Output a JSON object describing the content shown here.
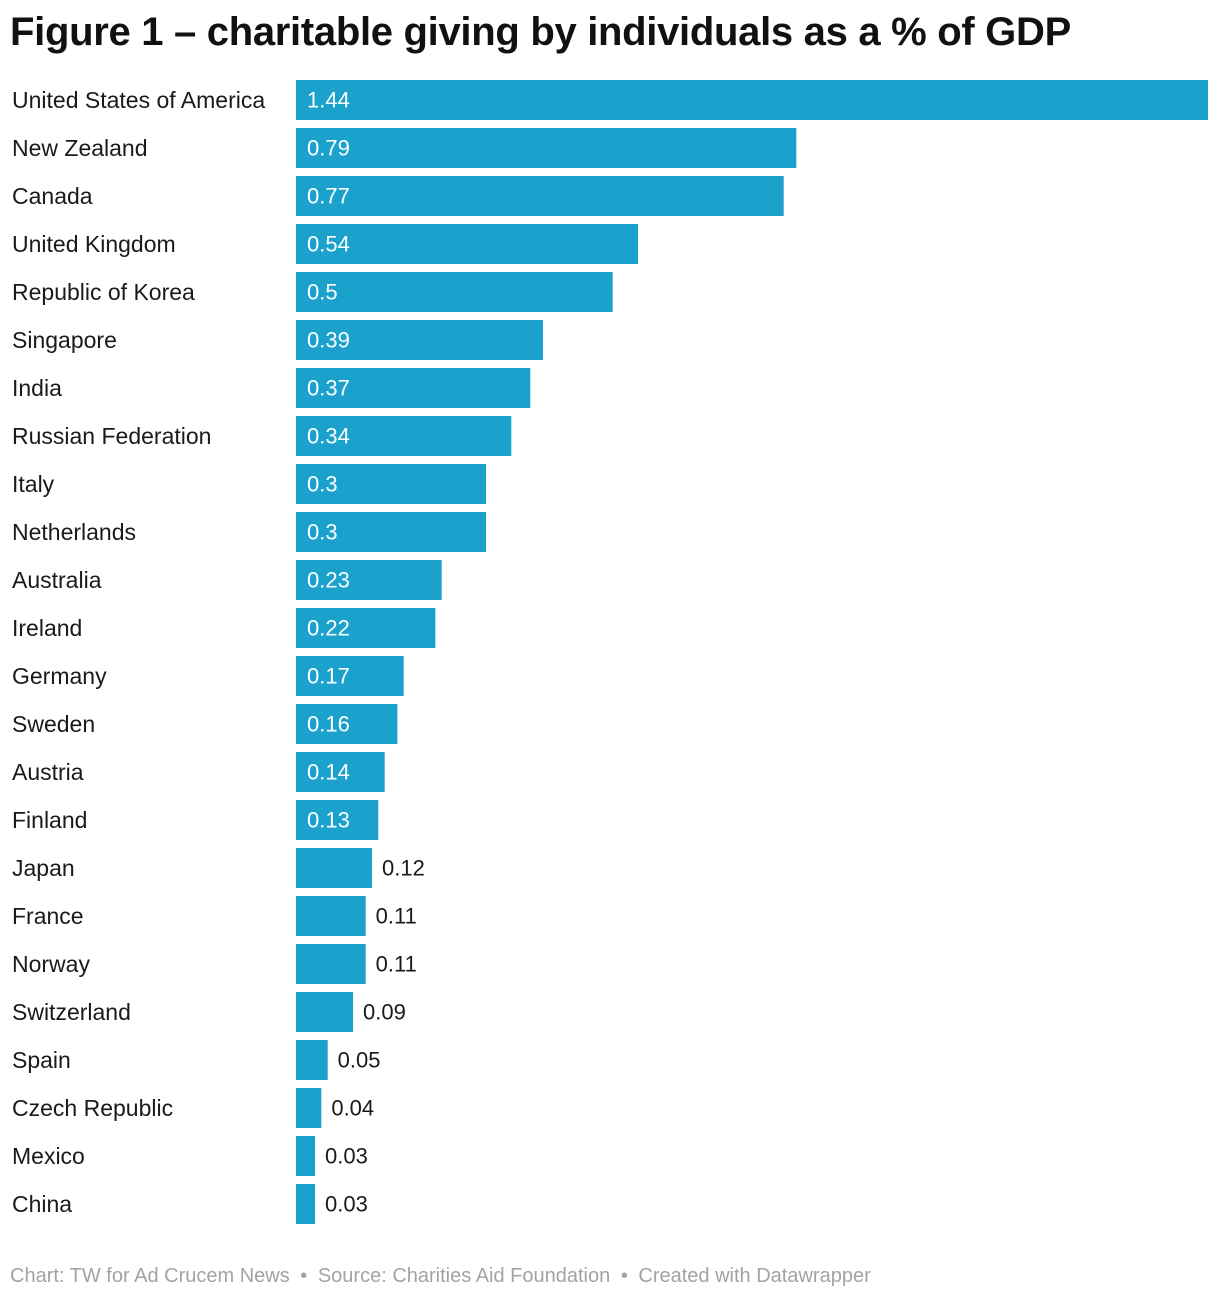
{
  "chart_data": {
    "type": "bar",
    "orientation": "horizontal",
    "title": "Figure 1 – charitable giving by individuals as a % of GDP",
    "xlabel": "",
    "ylabel": "",
    "xlim": [
      0,
      1.44
    ],
    "grid": false,
    "bar_color": "#1aa1cc",
    "categories": [
      "United States of America",
      "New Zealand",
      "Canada",
      "United Kingdom",
      "Republic of Korea",
      "Singapore",
      "India",
      "Russian Federation",
      "Italy",
      "Netherlands",
      "Australia",
      "Ireland",
      "Germany",
      "Sweden",
      "Austria",
      "Finland",
      "Japan",
      "France",
      "Norway",
      "Switzerland",
      "Spain",
      "Czech Republic",
      "Mexico",
      "China"
    ],
    "values": [
      1.44,
      0.79,
      0.77,
      0.54,
      0.5,
      0.39,
      0.37,
      0.34,
      0.3,
      0.3,
      0.23,
      0.22,
      0.17,
      0.16,
      0.14,
      0.13,
      0.12,
      0.11,
      0.11,
      0.09,
      0.05,
      0.04,
      0.03,
      0.03
    ],
    "value_labels": [
      "1.44",
      "0.79",
      "0.77",
      "0.54",
      "0.5",
      "0.39",
      "0.37",
      "0.34",
      "0.3",
      "0.3",
      "0.23",
      "0.22",
      "0.17",
      "0.16",
      "0.14",
      "0.13",
      "0.12",
      "0.11",
      "0.11",
      "0.09",
      "0.05",
      "0.04",
      "0.03",
      "0.03"
    ]
  },
  "footer": {
    "chart_credit": "Chart: TW for Ad Crucem News",
    "source": "Source: Charities Aid Foundation",
    "created_with": "Created with Datawrapper",
    "separator": "•"
  }
}
